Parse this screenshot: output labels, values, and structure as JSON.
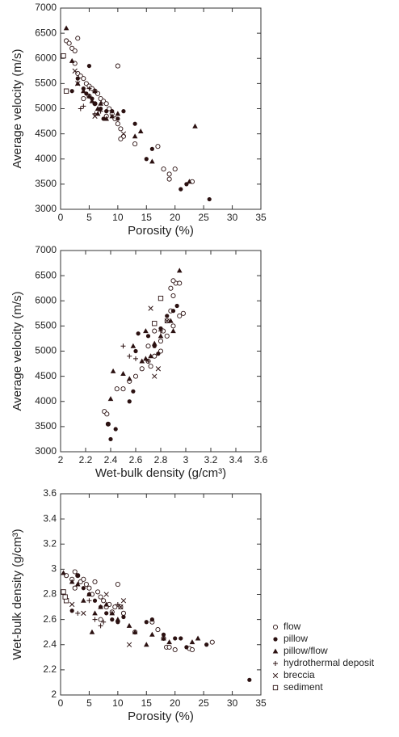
{
  "chart_data": [
    {
      "type": "scatter",
      "xlabel": "Porosity (%)",
      "ylabel": "Average velocity (m/s)",
      "xlim": [
        0,
        35
      ],
      "xticks": [
        0,
        5,
        10,
        15,
        20,
        25,
        30,
        35
      ],
      "ylim": [
        3000,
        7000
      ],
      "yticks": [
        3000,
        3500,
        4000,
        4500,
        5000,
        5500,
        6000,
        6500,
        7000
      ],
      "series": [
        {
          "marker": "circle-open",
          "color": "#2b1111",
          "x": [
            1,
            1.5,
            2,
            2.5,
            3,
            2.5,
            3,
            3.5,
            4,
            4.5,
            5,
            5.5,
            6,
            6.5,
            7,
            7.5,
            8,
            8.5,
            9,
            9.5,
            10,
            10.5,
            10,
            11,
            13,
            17,
            18,
            19,
            19,
            20,
            23,
            10.5,
            6,
            4,
            5,
            8
          ],
          "values": [
            6350,
            6300,
            6200,
            6150,
            6400,
            5900,
            5700,
            5650,
            5600,
            5500,
            5450,
            5400,
            5350,
            5300,
            5200,
            5150,
            5100,
            5000,
            4900,
            4800,
            4700,
            4600,
            5850,
            4450,
            4300,
            4250,
            3800,
            3700,
            3600,
            3800,
            3550,
            4400,
            5100,
            5200,
            5250,
            4850
          ]
        },
        {
          "marker": "circle-filled",
          "color": "#2b1111",
          "x": [
            2,
            3,
            4,
            5,
            5.5,
            6,
            7,
            8,
            9,
            10,
            11,
            13,
            16,
            15,
            21,
            22,
            26,
            4.5,
            7.5
          ],
          "values": [
            5350,
            5600,
            5400,
            5850,
            5200,
            5100,
            5000,
            4950,
            4950,
            4800,
            4950,
            4700,
            4200,
            4000,
            3400,
            3500,
            3200,
            5300,
            4800
          ]
        },
        {
          "marker": "triangle",
          "color": "#2b1111",
          "x": [
            1,
            2,
            3,
            4,
            5,
            5.5,
            6,
            6.5,
            7,
            8,
            9,
            10,
            14,
            13,
            16,
            22.5,
            23.5,
            6.5
          ],
          "values": [
            6600,
            5950,
            5500,
            5350,
            5250,
            5150,
            5350,
            5000,
            5100,
            4800,
            4850,
            4900,
            4550,
            4450,
            3950,
            3550,
            4650,
            4900
          ]
        },
        {
          "marker": "plus",
          "color": "#2b1111",
          "x": [
            3.5,
            4,
            5,
            6,
            7
          ],
          "values": [
            5000,
            5050,
            5400,
            4900,
            4950
          ]
        },
        {
          "marker": "cross",
          "color": "#2b1111",
          "x": [
            2.5,
            6,
            11,
            3
          ],
          "values": [
            5750,
            4850,
            4500,
            5500
          ]
        },
        {
          "marker": "square-open",
          "color": "#2b1111",
          "x": [
            0.5,
            1
          ],
          "values": [
            6050,
            5350
          ]
        }
      ]
    },
    {
      "type": "scatter",
      "xlabel": "Wet-bulk density (g/cm³)",
      "ylabel": "Average velocity (m/s)",
      "xlim": [
        2,
        3.6
      ],
      "xticks": [
        2,
        2.2,
        2.4,
        2.6,
        2.8,
        3,
        3.2,
        3.4,
        3.6
      ],
      "ylim": [
        3000,
        7000
      ],
      "yticks": [
        3000,
        3500,
        4000,
        4500,
        5000,
        5500,
        6000,
        6500,
        7000
      ],
      "series": [
        {
          "marker": "circle-open",
          "color": "#2b1111",
          "x": [
            2.35,
            2.37,
            2.38,
            2.45,
            2.5,
            2.55,
            2.6,
            2.65,
            2.7,
            2.72,
            2.75,
            2.8,
            2.82,
            2.85,
            2.88,
            2.9,
            2.92,
            2.95,
            2.9,
            2.85,
            2.8,
            2.9,
            2.95,
            2.75,
            2.7,
            2.98,
            2.88
          ],
          "values": [
            3800,
            3750,
            3550,
            4250,
            4250,
            4400,
            4500,
            4650,
            4800,
            4700,
            4900,
            5200,
            5400,
            5600,
            5800,
            6100,
            6350,
            6350,
            6400,
            5300,
            5000,
            5500,
            5700,
            5400,
            5100,
            5750,
            6250
          ]
        },
        {
          "marker": "circle-filled",
          "color": "#2b1111",
          "x": [
            2.38,
            2.4,
            2.44,
            2.55,
            2.58,
            2.6,
            2.62,
            2.7,
            2.75,
            2.8,
            2.85,
            2.9,
            2.93,
            2.78
          ],
          "values": [
            3550,
            3250,
            3450,
            4000,
            4200,
            5000,
            5350,
            5300,
            5100,
            5450,
            5700,
            5800,
            5900,
            4950
          ]
        },
        {
          "marker": "triangle",
          "color": "#2b1111",
          "x": [
            2.4,
            2.42,
            2.5,
            2.55,
            2.58,
            2.65,
            2.68,
            2.72,
            2.75,
            2.8,
            2.88,
            2.95,
            2.9,
            2.68
          ],
          "values": [
            4050,
            4600,
            4550,
            4450,
            5100,
            4800,
            5400,
            4900,
            5150,
            5300,
            5600,
            6600,
            5400,
            4850
          ]
        },
        {
          "marker": "plus",
          "color": "#2b1111",
          "x": [
            2.5,
            2.55,
            2.6,
            2.7,
            2.8
          ],
          "values": [
            5100,
            4900,
            4850,
            4800,
            5400
          ]
        },
        {
          "marker": "cross",
          "color": "#2b1111",
          "x": [
            2.75,
            2.72,
            2.78,
            2.85
          ],
          "values": [
            4500,
            5850,
            4650,
            5600
          ]
        },
        {
          "marker": "square-open",
          "color": "#2b1111",
          "x": [
            2.8,
            2.75
          ],
          "values": [
            6050,
            5550
          ]
        }
      ]
    },
    {
      "type": "scatter",
      "xlabel": "Porosity (%)",
      "ylabel": "Wet-bulk density (g/cm³)",
      "xlim": [
        0,
        35
      ],
      "xticks": [
        0,
        5,
        10,
        15,
        20,
        25,
        30,
        35
      ],
      "ylim": [
        2,
        3.6
      ],
      "yticks": [
        2,
        2.2,
        2.4,
        2.6,
        2.8,
        3,
        3.2,
        3.4,
        3.6
      ],
      "legend": "right",
      "series": [
        {
          "name": "flow",
          "marker": "circle-open",
          "color": "#2b1111",
          "x": [
            1,
            2,
            2.5,
            3,
            3.5,
            4,
            4.5,
            5,
            5.5,
            6,
            6.5,
            7,
            7.5,
            8,
            8.5,
            9,
            9.5,
            10,
            10.5,
            11,
            13,
            16,
            17,
            18,
            18.5,
            19,
            20,
            22.5,
            23,
            26.5,
            7,
            2.5
          ],
          "values": [
            2.95,
            2.92,
            2.98,
            2.95,
            2.9,
            2.92,
            2.88,
            2.85,
            2.8,
            2.9,
            2.82,
            2.78,
            2.75,
            2.7,
            2.72,
            2.66,
            2.7,
            2.88,
            2.7,
            2.65,
            2.5,
            2.58,
            2.52,
            2.45,
            2.38,
            2.38,
            2.36,
            2.37,
            2.36,
            2.42,
            2.6,
            2.85
          ]
        },
        {
          "name": "pillow",
          "marker": "circle-filled",
          "color": "#2b1111",
          "x": [
            2,
            3,
            4,
            5,
            6,
            7,
            8,
            9,
            10,
            11,
            15,
            16,
            18,
            20,
            21,
            22,
            25.5,
            33
          ],
          "values": [
            2.67,
            2.95,
            2.85,
            2.8,
            2.75,
            2.7,
            2.65,
            2.6,
            2.58,
            2.62,
            2.58,
            2.6,
            2.48,
            2.45,
            2.45,
            2.38,
            2.4,
            2.12
          ]
        },
        {
          "name": "pillow/flow",
          "marker": "triangle",
          "color": "#2b1111",
          "x": [
            0.5,
            2,
            3,
            4,
            5,
            5.5,
            6,
            7,
            8,
            9,
            10,
            12,
            13,
            15,
            16,
            18,
            19,
            23,
            24
          ],
          "values": [
            2.97,
            2.9,
            2.88,
            2.75,
            2.8,
            2.5,
            2.65,
            2.7,
            2.72,
            2.65,
            2.6,
            2.55,
            2.5,
            2.4,
            2.48,
            2.45,
            2.42,
            2.42,
            2.45
          ]
        },
        {
          "name": "hydrothermal deposit",
          "marker": "plus",
          "color": "#2b1111",
          "x": [
            3,
            5,
            6,
            7,
            7.5,
            10
          ],
          "values": [
            2.65,
            2.75,
            2.6,
            2.55,
            2.58,
            2.72
          ]
        },
        {
          "name": "breccia",
          "marker": "cross",
          "color": "#2b1111",
          "x": [
            2,
            4,
            8,
            11,
            12,
            10.5
          ],
          "values": [
            2.72,
            2.65,
            2.8,
            2.75,
            2.4,
            2.7
          ]
        },
        {
          "name": "sediment",
          "marker": "square-open",
          "color": "#2b1111",
          "x": [
            0.5,
            1,
            0.8
          ],
          "values": [
            2.82,
            2.75,
            2.78
          ]
        }
      ]
    }
  ]
}
